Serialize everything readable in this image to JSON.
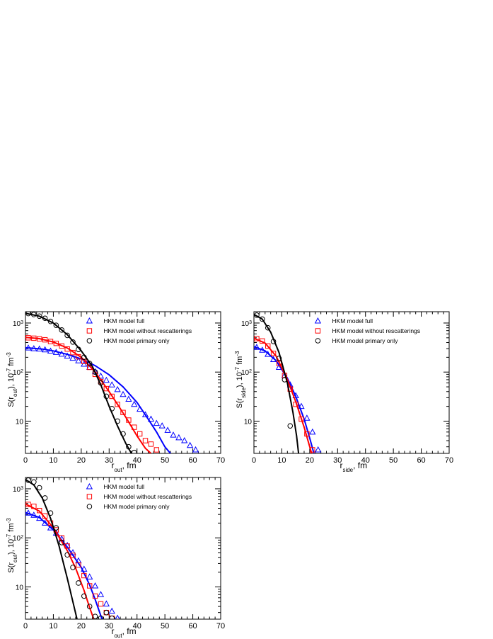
{
  "colors": {
    "full": "#0000ff",
    "norescatter": "#ff0000",
    "primary": "#000000"
  },
  "chart_data": [
    {
      "type": "scatter",
      "xlabel": "r_out, fm",
      "ylabel": "S(r_out), 10^-7 fm^-3",
      "xlim": [
        0,
        70
      ],
      "ylim": [
        2.2,
        1700
      ],
      "yscale": "log",
      "xticks": [
        0,
        10,
        20,
        30,
        40,
        50,
        60,
        70
      ],
      "yticks": [
        "10",
        "10^2",
        "10^3"
      ],
      "legend": "top-right",
      "series": [
        {
          "name": "HKM model full",
          "marker": "triangle",
          "color": "#0000ff",
          "points": [
            [
              1,
              310
            ],
            [
              3,
              300
            ],
            [
              5,
              295
            ],
            [
              7,
              285
            ],
            [
              9,
              268
            ],
            [
              11,
              252
            ],
            [
              13,
              232
            ],
            [
              15,
              212
            ],
            [
              17,
              192
            ],
            [
              19,
              170
            ],
            [
              21,
              145
            ],
            [
              23,
              125
            ],
            [
              25,
              102
            ],
            [
              27,
              83
            ],
            [
              29,
              68
            ],
            [
              31,
              55
            ],
            [
              33,
              44
            ],
            [
              35,
              35
            ],
            [
              37,
              28
            ],
            [
              39,
              22
            ],
            [
              41,
              17.5
            ],
            [
              43,
              13.5
            ],
            [
              45,
              11
            ],
            [
              47,
              9
            ],
            [
              49,
              8
            ],
            [
              51,
              6.5
            ],
            [
              53,
              5.2
            ],
            [
              55,
              4.6
            ],
            [
              57,
              4
            ],
            [
              59,
              3.2
            ],
            [
              61,
              2.6
            ]
          ],
          "curve": [
            [
              0,
              315
            ],
            [
              6,
              295
            ],
            [
              10,
              270
            ],
            [
              15,
              230
            ],
            [
              20,
              185
            ],
            [
              25,
              135
            ],
            [
              30,
              88
            ],
            [
              35,
              50
            ],
            [
              40,
              24
            ],
            [
              44,
              11
            ],
            [
              47,
              6
            ],
            [
              50,
              3
            ],
            [
              52,
              2.2
            ]
          ]
        },
        {
          "name": "HKM model without rescatterings",
          "marker": "square",
          "color": "#ff0000",
          "points": [
            [
              1,
              500
            ],
            [
              3,
              490
            ],
            [
              5,
              475
            ],
            [
              7,
              455
            ],
            [
              9,
              420
            ],
            [
              11,
              385
            ],
            [
              13,
              340
            ],
            [
              15,
              295
            ],
            [
              17,
              250
            ],
            [
              19,
              205
            ],
            [
              21,
              165
            ],
            [
              23,
              125
            ],
            [
              25,
              90
            ],
            [
              27,
              64
            ],
            [
              29,
              46
            ],
            [
              31,
              32
            ],
            [
              33,
              22
            ],
            [
              35,
              15
            ],
            [
              37,
              10.5
            ],
            [
              39,
              7.5
            ],
            [
              41,
              5.5
            ],
            [
              43,
              4
            ],
            [
              45,
              3.4
            ],
            [
              47,
              2.6
            ]
          ],
          "curve": [
            [
              0,
              510
            ],
            [
              5,
              480
            ],
            [
              10,
              410
            ],
            [
              15,
              310
            ],
            [
              20,
              200
            ],
            [
              25,
              100
            ],
            [
              30,
              40
            ],
            [
              33,
              22
            ],
            [
              36,
              12
            ],
            [
              40,
              5
            ],
            [
              43,
              2.8
            ],
            [
              45,
              2.2
            ]
          ]
        },
        {
          "name": "HKM model primary only",
          "marker": "circle",
          "color": "#000000",
          "points": [
            [
              1,
              1560
            ],
            [
              3,
              1490
            ],
            [
              5,
              1380
            ],
            [
              7,
              1250
            ],
            [
              9,
              1080
            ],
            [
              11,
              900
            ],
            [
              13,
              720
            ],
            [
              15,
              560
            ],
            [
              17,
              410
            ],
            [
              19,
              290
            ],
            [
              21,
              200
            ],
            [
              23,
              150
            ],
            [
              25,
              100
            ],
            [
              27,
              60
            ],
            [
              29,
              32
            ],
            [
              31,
              18
            ],
            [
              33,
              10
            ],
            [
              35,
              5.5
            ],
            [
              37,
              3
            ],
            [
              39,
              2.3
            ]
          ],
          "curve": [
            [
              0,
              1580
            ],
            [
              5,
              1380
            ],
            [
              10,
              1000
            ],
            [
              15,
              580
            ],
            [
              20,
              270
            ],
            [
              24,
              130
            ],
            [
              27,
              55
            ],
            [
              30,
              20
            ],
            [
              33,
              8
            ],
            [
              36,
              3.5
            ],
            [
              38,
              2.2
            ]
          ]
        }
      ]
    },
    {
      "type": "scatter",
      "xlabel": "r_side, fm",
      "ylabel": "S(r_side), 10^-7 fm^-3",
      "xlim": [
        0,
        70
      ],
      "ylim": [
        2.2,
        1700
      ],
      "yscale": "log",
      "xticks": [
        0,
        10,
        20,
        30,
        40,
        50,
        60,
        70
      ],
      "yticks": [
        "10",
        "10^2",
        "10^3"
      ],
      "legend": "top-right",
      "series": [
        {
          "name": "HKM model full",
          "marker": "triangle",
          "color": "#0000ff",
          "points": [
            [
              1,
              320
            ],
            [
              3,
              280
            ],
            [
              5,
              230
            ],
            [
              7,
              180
            ],
            [
              9,
              125
            ],
            [
              11,
              85
            ],
            [
              13,
              55
            ],
            [
              15,
              33
            ],
            [
              17,
              20
            ],
            [
              19,
              11.5
            ],
            [
              21,
              6
            ],
            [
              23,
              2.6
            ]
          ],
          "curve": [
            [
              0,
              330
            ],
            [
              4,
              270
            ],
            [
              8,
              170
            ],
            [
              12,
              75
            ],
            [
              15,
              32
            ],
            [
              18,
              11
            ],
            [
              20,
              4.5
            ],
            [
              21.5,
              2.2
            ]
          ]
        },
        {
          "name": "HKM model without rescatterings",
          "marker": "square",
          "color": "#ff0000",
          "points": [
            [
              1,
              480
            ],
            [
              3,
              430
            ],
            [
              5,
              340
            ],
            [
              7,
              240
            ],
            [
              9,
              150
            ],
            [
              11,
              85
            ],
            [
              13,
              45
            ],
            [
              15,
              22
            ],
            [
              17,
              11
            ],
            [
              19,
              5.5
            ],
            [
              21,
              2.6
            ]
          ],
          "curve": [
            [
              0,
              490
            ],
            [
              4,
              390
            ],
            [
              8,
              210
            ],
            [
              12,
              70
            ],
            [
              15,
              25
            ],
            [
              18,
              7.5
            ],
            [
              20,
              3
            ],
            [
              20.7,
              2.2
            ]
          ]
        },
        {
          "name": "HKM model primary only",
          "marker": "circle",
          "color": "#000000",
          "points": [
            [
              1,
              1450
            ],
            [
              3,
              1200
            ],
            [
              5,
              800
            ],
            [
              7,
              420
            ],
            [
              9,
              190
            ],
            [
              11,
              70
            ],
            [
              13,
              8
            ]
          ],
          "curve": [
            [
              0,
              1500
            ],
            [
              3,
              1200
            ],
            [
              6,
              650
            ],
            [
              9,
              250
            ],
            [
              12,
              60
            ],
            [
              14,
              15
            ],
            [
              15.3,
              5
            ],
            [
              16,
              2.2
            ]
          ]
        }
      ]
    },
    {
      "type": "scatter",
      "xlabel": "r_out, fm",
      "ylabel": "S(r_out), 10^-7 fm^-3",
      "xlim": [
        0,
        70
      ],
      "ylim": [
        2.2,
        1700
      ],
      "yscale": "log",
      "xticks": [
        0,
        10,
        20,
        30,
        40,
        50,
        60,
        70
      ],
      "yticks": [
        "10",
        "10^2",
        "10^3"
      ],
      "legend": "top-right",
      "series": [
        {
          "name": "HKM model full",
          "marker": "triangle",
          "color": "#0000ff",
          "points": [
            [
              1,
              320
            ],
            [
              3,
              290
            ],
            [
              5,
              250
            ],
            [
              7,
              200
            ],
            [
              9,
              160
            ],
            [
              11,
              125
            ],
            [
              13,
              95
            ],
            [
              15,
              70
            ],
            [
              17,
              50
            ],
            [
              19,
              34
            ],
            [
              21,
              23
            ],
            [
              23,
              16
            ],
            [
              25,
              10.5
            ],
            [
              27,
              7
            ],
            [
              29,
              4.5
            ],
            [
              31,
              3.2
            ],
            [
              33,
              2.3
            ]
          ],
          "curve": [
            [
              0,
              330
            ],
            [
              5,
              260
            ],
            [
              10,
              145
            ],
            [
              15,
              65
            ],
            [
              20,
              25
            ],
            [
              23,
              11
            ],
            [
              25,
              5.5
            ],
            [
              27,
              2.6
            ],
            [
              27.5,
              2.2
            ]
          ]
        },
        {
          "name": "HKM model without rescatterings",
          "marker": "square",
          "color": "#ff0000",
          "points": [
            [
              1,
              480
            ],
            [
              3,
              440
            ],
            [
              5,
              360
            ],
            [
              7,
              280
            ],
            [
              9,
              200
            ],
            [
              11,
              145
            ],
            [
              13,
              100
            ],
            [
              15,
              68
            ],
            [
              17,
              44
            ],
            [
              19,
              28
            ],
            [
              21,
              17
            ],
            [
              23,
              10.5
            ],
            [
              25,
              6.5
            ],
            [
              27,
              4.5
            ],
            [
              29,
              3
            ],
            [
              31,
              2.3
            ]
          ],
          "curve": [
            [
              0,
              490
            ],
            [
              5,
              350
            ],
            [
              10,
              160
            ],
            [
              15,
              55
            ],
            [
              18,
              24
            ],
            [
              21,
              8.5
            ],
            [
              23,
              3.8
            ],
            [
              24.5,
              2.2
            ]
          ]
        },
        {
          "name": "HKM model primary only",
          "marker": "circle",
          "color": "#000000",
          "points": [
            [
              1,
              1500
            ],
            [
              3,
              1380
            ],
            [
              5,
              1050
            ],
            [
              7,
              650
            ],
            [
              9,
              320
            ],
            [
              11,
              160
            ],
            [
              13,
              80
            ],
            [
              15,
              45
            ],
            [
              17,
              25
            ],
            [
              19,
              12
            ],
            [
              21,
              6.5
            ],
            [
              23,
              4
            ],
            [
              25,
              2.5
            ],
            [
              27,
              2.3
            ],
            [
              29,
              3
            ],
            [
              31,
              2.3
            ]
          ],
          "curve": [
            [
              0,
              1550
            ],
            [
              3,
              1200
            ],
            [
              6,
              650
            ],
            [
              9,
              250
            ],
            [
              12,
              70
            ],
            [
              15,
              15
            ],
            [
              17,
              5
            ],
            [
              18.5,
              2.2
            ]
          ]
        }
      ]
    }
  ]
}
